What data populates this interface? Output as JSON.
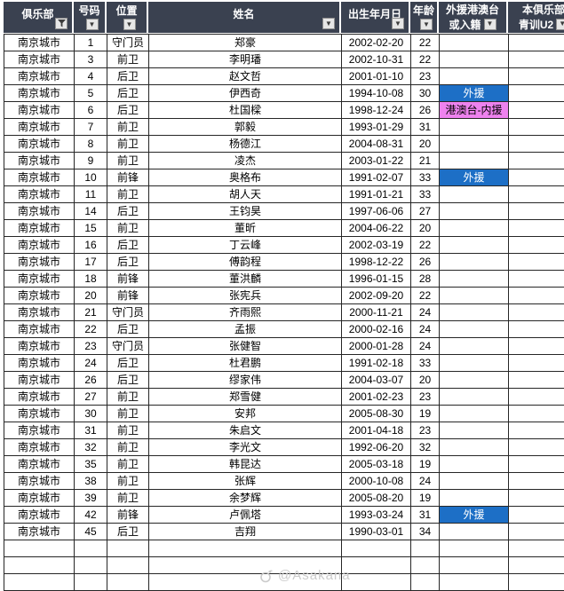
{
  "header": {
    "columns": [
      {
        "label": "俱乐部",
        "icon": "filter-icon"
      },
      {
        "label": "号码",
        "icon": "dropdown-icon"
      },
      {
        "label": "位置",
        "icon": "dropdown-icon"
      },
      {
        "label": "姓名",
        "icon": "dropdown-icon"
      },
      {
        "label": "出生年月日",
        "icon": "dropdown-icon"
      },
      {
        "label": "年龄",
        "icon": "dropdown-icon"
      },
      {
        "line1": "外援港澳台",
        "line2": "或入籍",
        "icon": "dropdown-icon"
      },
      {
        "line1": "本俱乐部",
        "line2": "青训U2",
        "icon": "dropdown-icon"
      }
    ]
  },
  "rows": [
    {
      "club": "南京城市",
      "number": "1",
      "position": "守门员",
      "name": "郑豪",
      "dob": "2002-02-20",
      "age": "22",
      "status": "",
      "status_type": ""
    },
    {
      "club": "南京城市",
      "number": "3",
      "position": "前卫",
      "name": "李明璠",
      "dob": "2002-10-31",
      "age": "22",
      "status": "",
      "status_type": ""
    },
    {
      "club": "南京城市",
      "number": "4",
      "position": "后卫",
      "name": "赵文哲",
      "dob": "2001-01-10",
      "age": "23",
      "status": "",
      "status_type": ""
    },
    {
      "club": "南京城市",
      "number": "5",
      "position": "后卫",
      "name": "伊西奇",
      "dob": "1994-10-08",
      "age": "30",
      "status": "外援",
      "status_type": "foreign"
    },
    {
      "club": "南京城市",
      "number": "6",
      "position": "后卫",
      "name": "杜国樑",
      "dob": "1998-12-24",
      "age": "26",
      "status": "港澳台-内援",
      "status_type": "hmt"
    },
    {
      "club": "南京城市",
      "number": "7",
      "position": "前卫",
      "name": "郭毅",
      "dob": "1993-01-29",
      "age": "31",
      "status": "",
      "status_type": ""
    },
    {
      "club": "南京城市",
      "number": "8",
      "position": "前卫",
      "name": "杨德江",
      "dob": "2004-08-31",
      "age": "20",
      "status": "",
      "status_type": ""
    },
    {
      "club": "南京城市",
      "number": "9",
      "position": "前卫",
      "name": "凌杰",
      "dob": "2003-01-22",
      "age": "21",
      "status": "",
      "status_type": ""
    },
    {
      "club": "南京城市",
      "number": "10",
      "position": "前锋",
      "name": "奥格布",
      "dob": "1991-02-07",
      "age": "33",
      "status": "外援",
      "status_type": "foreign"
    },
    {
      "club": "南京城市",
      "number": "11",
      "position": "前卫",
      "name": "胡人天",
      "dob": "1991-01-21",
      "age": "33",
      "status": "",
      "status_type": ""
    },
    {
      "club": "南京城市",
      "number": "14",
      "position": "后卫",
      "name": "王钧昊",
      "dob": "1997-06-06",
      "age": "27",
      "status": "",
      "status_type": ""
    },
    {
      "club": "南京城市",
      "number": "15",
      "position": "前卫",
      "name": "董昕",
      "dob": "2004-06-22",
      "age": "20",
      "status": "",
      "status_type": ""
    },
    {
      "club": "南京城市",
      "number": "16",
      "position": "后卫",
      "name": "丁云峰",
      "dob": "2002-03-19",
      "age": "22",
      "status": "",
      "status_type": ""
    },
    {
      "club": "南京城市",
      "number": "17",
      "position": "后卫",
      "name": "傅韵程",
      "dob": "1998-12-22",
      "age": "26",
      "status": "",
      "status_type": ""
    },
    {
      "club": "南京城市",
      "number": "18",
      "position": "前锋",
      "name": "董洪麟",
      "dob": "1996-01-15",
      "age": "28",
      "status": "",
      "status_type": ""
    },
    {
      "club": "南京城市",
      "number": "20",
      "position": "前锋",
      "name": "张宪兵",
      "dob": "2002-09-20",
      "age": "22",
      "status": "",
      "status_type": ""
    },
    {
      "club": "南京城市",
      "number": "21",
      "position": "守门员",
      "name": "齐雨熙",
      "dob": "2000-11-21",
      "age": "24",
      "status": "",
      "status_type": ""
    },
    {
      "club": "南京城市",
      "number": "22",
      "position": "后卫",
      "name": "孟振",
      "dob": "2000-02-16",
      "age": "24",
      "status": "",
      "status_type": ""
    },
    {
      "club": "南京城市",
      "number": "23",
      "position": "守门员",
      "name": "张健智",
      "dob": "2000-01-28",
      "age": "24",
      "status": "",
      "status_type": ""
    },
    {
      "club": "南京城市",
      "number": "24",
      "position": "后卫",
      "name": "杜君鹏",
      "dob": "1991-02-18",
      "age": "33",
      "status": "",
      "status_type": ""
    },
    {
      "club": "南京城市",
      "number": "26",
      "position": "后卫",
      "name": "缪家伟",
      "dob": "2004-03-07",
      "age": "20",
      "status": "",
      "status_type": ""
    },
    {
      "club": "南京城市",
      "number": "27",
      "position": "前卫",
      "name": "郑雪健",
      "dob": "2001-02-23",
      "age": "23",
      "status": "",
      "status_type": ""
    },
    {
      "club": "南京城市",
      "number": "30",
      "position": "前卫",
      "name": "安邦",
      "dob": "2005-08-30",
      "age": "19",
      "status": "",
      "status_type": ""
    },
    {
      "club": "南京城市",
      "number": "31",
      "position": "前卫",
      "name": "朱启文",
      "dob": "2001-04-18",
      "age": "23",
      "status": "",
      "status_type": ""
    },
    {
      "club": "南京城市",
      "number": "32",
      "position": "前卫",
      "name": "李光文",
      "dob": "1992-06-20",
      "age": "32",
      "status": "",
      "status_type": ""
    },
    {
      "club": "南京城市",
      "number": "35",
      "position": "前卫",
      "name": "韩昆达",
      "dob": "2005-03-18",
      "age": "19",
      "status": "",
      "status_type": ""
    },
    {
      "club": "南京城市",
      "number": "38",
      "position": "前卫",
      "name": "张辉",
      "dob": "2000-10-08",
      "age": "24",
      "status": "",
      "status_type": ""
    },
    {
      "club": "南京城市",
      "number": "39",
      "position": "前卫",
      "name": "余梦辉",
      "dob": "2005-08-20",
      "age": "19",
      "status": "",
      "status_type": ""
    },
    {
      "club": "南京城市",
      "number": "42",
      "position": "前锋",
      "name": "卢佩塔",
      "dob": "1993-03-24",
      "age": "31",
      "status": "外援",
      "status_type": "foreign"
    },
    {
      "club": "南京城市",
      "number": "45",
      "position": "后卫",
      "name": "吉翔",
      "dob": "1990-03-01",
      "age": "34",
      "status": "",
      "status_type": ""
    }
  ],
  "empty_row_count": 3,
  "watermark": {
    "text": "@Asakana"
  },
  "colors": {
    "header_bg": "#3a4150",
    "foreign_bg": "#1d6fc6",
    "hmt_bg": "#ee82ee",
    "grid_line": "#262626"
  }
}
